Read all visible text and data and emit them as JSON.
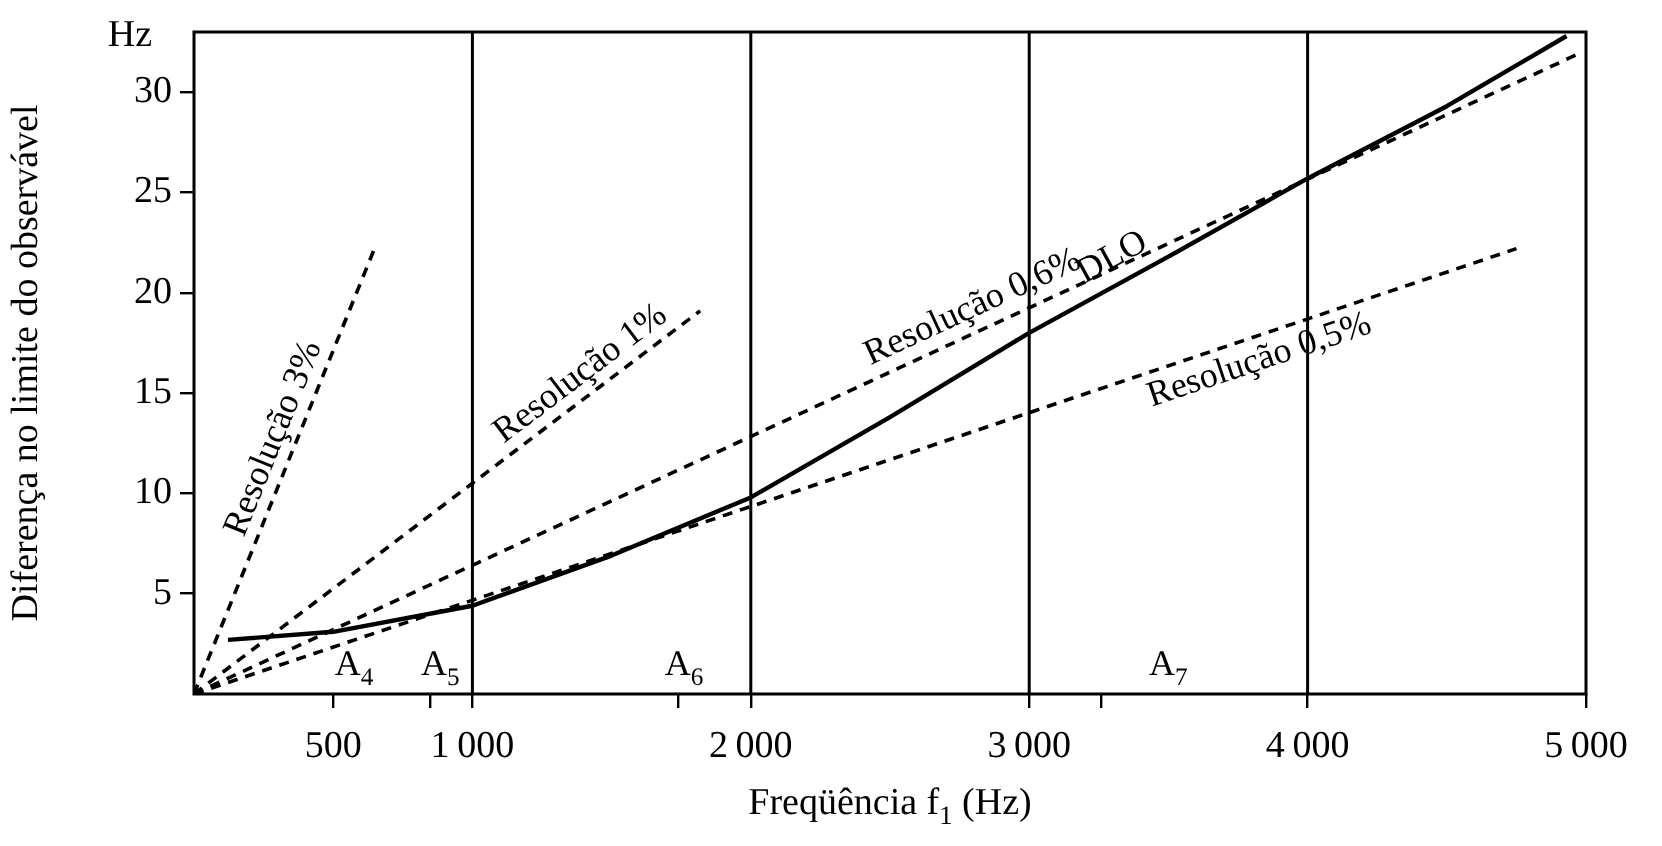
{
  "chart_data": {
    "type": "line",
    "xlabel": "Freqüência f$_{1}$ (Hz)",
    "ylabel": "Diferença no limite do observável",
    "xlim": [
      0,
      5000
    ],
    "ylim": [
      0,
      33
    ],
    "xticks": [
      500,
      {
        "value": 850,
        "label": null
      },
      1000,
      {
        "value": 1740,
        "label": null
      },
      2000,
      3000,
      {
        "value": 3260,
        "label": null
      },
      4000,
      5000
    ],
    "yticks": [
      5,
      10,
      15,
      20,
      25,
      30
    ],
    "grid": false,
    "legend": false,
    "marker": "none",
    "series": [
      {
        "name": "Resolução 3%",
        "color": "#000000",
        "line_style": "dashed",
        "x": [
          0,
          654
        ],
        "values": [
          0,
          22.4
        ]
      },
      {
        "name": "Resolução 1%",
        "color": "#000000",
        "line_style": "dashed",
        "x": [
          0,
          1818
        ],
        "values": [
          0,
          19.1
        ]
      },
      {
        "name": "Resolução 0,6%",
        "color": "#000000",
        "line_style": "dashed",
        "x": [
          0,
          4971
        ],
        "values": [
          0,
          31.9
        ]
      },
      {
        "name": "Resolução 0,5%",
        "color": "#000000",
        "line_style": "dashed",
        "x": [
          0,
          4750
        ],
        "values": [
          0,
          22.2
        ]
      },
      {
        "name": "DLO",
        "color": "#000000",
        "line_style": "solid",
        "x": [
          122,
          500,
          1000,
          1500,
          2000,
          2500,
          3000,
          3500,
          4000,
          4500,
          4930
        ],
        "values": [
          2.7,
          3.1,
          4.4,
          6.9,
          9.8,
          13.8,
          18.0,
          21.8,
          25.7,
          29.3,
          32.8
        ]
      }
    ],
    "ref_lines": [
      {
        "axis": "x",
        "value": 1000,
        "color": "#000000"
      },
      {
        "axis": "x",
        "value": 2000,
        "color": "#000000"
      },
      {
        "axis": "x",
        "value": 3000,
        "color": "#000000"
      },
      {
        "axis": "x",
        "value": 4000,
        "color": "#000000"
      }
    ],
    "annotations": [
      "Hz",
      "A$_{4}$",
      "A$_{5}$",
      "A$_{6}$",
      "A$_{7}$"
    ]
  }
}
